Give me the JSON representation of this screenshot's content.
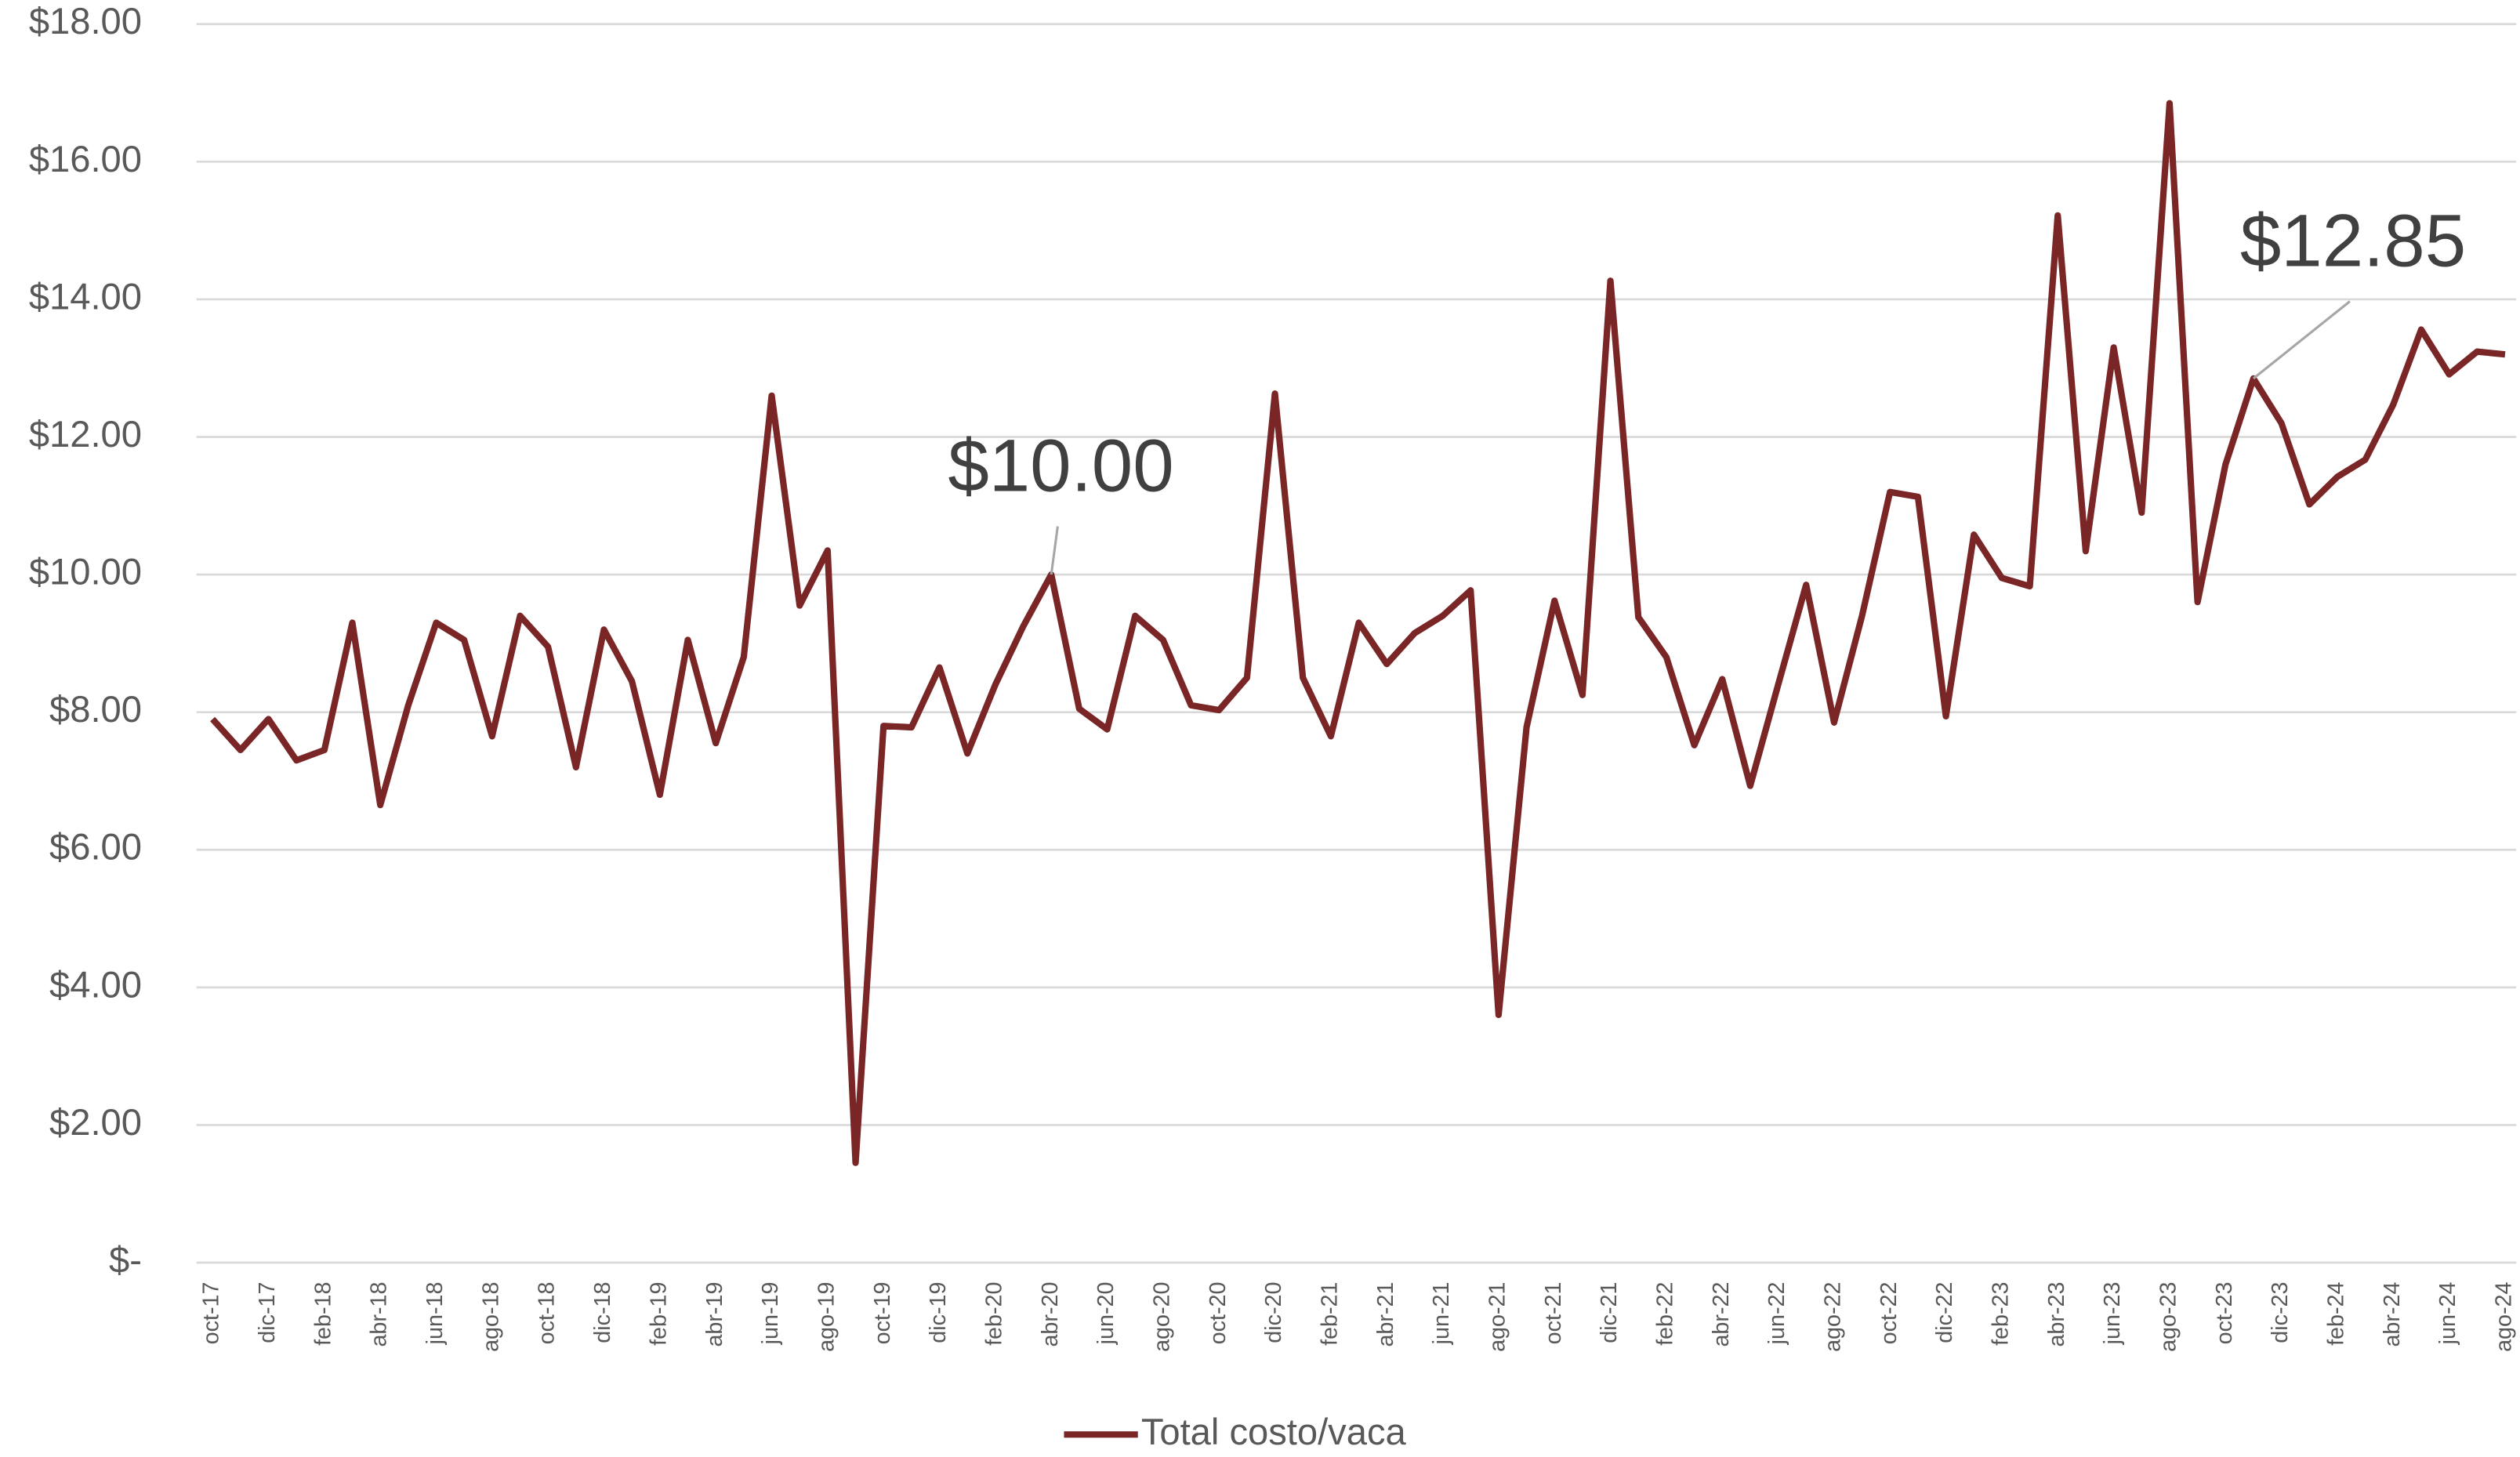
{
  "chart_data": {
    "type": "line",
    "categories": [
      "oct-17",
      null,
      "dic-17",
      null,
      "feb-18",
      null,
      "abr-18",
      null,
      "jun-18",
      null,
      "ago-18",
      null,
      "oct-18",
      null,
      "dic-18",
      null,
      "feb-19",
      null,
      "abr-19",
      null,
      "jun-19",
      null,
      "ago-19",
      null,
      "oct-19",
      null,
      "dic-19",
      null,
      "feb-20",
      null,
      "abr-20",
      null,
      "jun-20",
      null,
      "ago-20",
      null,
      "oct-20",
      null,
      "dic-20",
      null,
      "feb-21",
      null,
      "abr-21",
      null,
      "jun-21",
      null,
      "ago-21",
      null,
      "oct-21",
      null,
      "dic-21",
      null,
      "feb-22",
      null,
      "abr-22",
      null,
      "jun-22",
      null,
      "ago-22",
      null,
      "oct-22",
      null,
      "dic-22",
      null,
      "feb-23",
      null,
      "abr-23",
      null,
      "jun-23",
      null,
      "ago-23",
      null,
      "oct-23",
      null,
      "dic-23",
      null,
      "feb-24",
      null,
      "abr-24",
      null,
      "jun-24",
      null,
      "ago-24"
    ],
    "series": [
      {
        "name": "Total costo/vaca",
        "color": "#7b2626",
        "values": [
          7.9,
          7.45,
          7.9,
          7.3,
          7.45,
          9.3,
          6.65,
          8.1,
          9.3,
          9.05,
          7.65,
          9.4,
          8.95,
          7.2,
          9.2,
          8.45,
          6.8,
          9.05,
          7.55,
          8.8,
          12.6,
          9.55,
          10.35,
          1.45,
          7.8,
          7.78,
          8.65,
          7.4,
          8.4,
          9.25,
          10.0,
          8.05,
          7.75,
          9.4,
          9.05,
          8.1,
          8.03,
          8.5,
          12.63,
          8.5,
          7.65,
          9.3,
          8.7,
          9.15,
          9.4,
          9.77,
          3.6,
          7.78,
          9.62,
          8.25,
          14.27,
          9.38,
          8.8,
          7.52,
          8.48,
          6.93,
          8.4,
          9.85,
          7.85,
          9.4,
          11.2,
          11.13,
          7.94,
          10.58,
          9.95,
          9.83,
          15.22,
          10.34,
          13.3,
          10.9,
          16.85,
          9.6,
          11.6,
          12.85,
          12.2,
          11.02,
          11.42,
          11.67,
          12.47,
          13.56,
          12.91,
          13.24,
          13.2
        ]
      }
    ],
    "annotations": [
      {
        "text": "$10.00",
        "index": 30
      },
      {
        "text": "$12.85",
        "index": 73
      }
    ],
    "ylim": [
      0,
      18
    ],
    "yticks": [
      {
        "value": 0,
        "label": "$-"
      },
      {
        "value": 2,
        "label": "$2.00"
      },
      {
        "value": 4,
        "label": "$4.00"
      },
      {
        "value": 6,
        "label": "$6.00"
      },
      {
        "value": 8,
        "label": "$8.00"
      },
      {
        "value": 10,
        "label": "$10.00"
      },
      {
        "value": 12,
        "label": "$12.00"
      },
      {
        "value": 14,
        "label": "$14.00"
      },
      {
        "value": 16,
        "label": "$16.00"
      },
      {
        "value": 18,
        "label": "$18.00"
      }
    ],
    "grid": true,
    "legend": "bottom"
  }
}
